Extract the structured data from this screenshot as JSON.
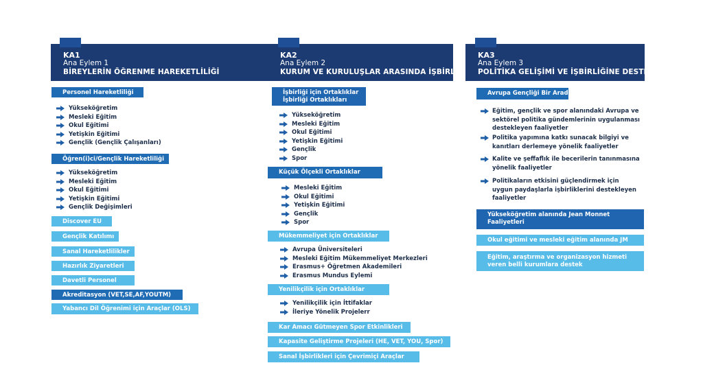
{
  "ka1": {
    "code": "KA1",
    "sub": "Ana Eylem 1",
    "title": "BİREYLERİN ÖĞRENME HAREKETLİLİĞİ",
    "box1": "Personel Hareketliliği",
    "list1": [
      "Yükseköğretim",
      "Mesleki Eğitim",
      "Okul Eğitimi",
      "Yetişkin Eğitimi",
      "Gençlik (Gençlik Çalışanları)"
    ],
    "box2": "Öğren(i)ci/Gençlik Hareketliliği",
    "list2": [
      "Yükseköğretim",
      "Mesleki Eğitim",
      "Okul Eğitimi",
      "Yetişkin Eğitimi",
      "Gençlik Değişimleri"
    ],
    "boxes": [
      "Discover EU",
      "Gençlik Katılımı",
      "Sanal Hareketlilikler",
      "Hazırlık Ziyaretleri",
      "Davetli Personel",
      "Akreditasyon (VET,SE,AF,YOUTM)",
      "Yabancı Dil Öğrenimi için Araçlar (OLS)"
    ]
  },
  "ka2": {
    "code": "KA2",
    "sub": "Ana Eylem 2",
    "title": "KURUM VE KURULUŞLAR ARASINDA İŞBİRLİĞİ",
    "box1_line1": "İşbirliği için Ortaklıklar",
    "box1_line2": "İşbirliği Ortaklıkları",
    "list1": [
      "Yükseköğretim",
      "Mesleki Eğitim",
      "Okul Eğitimi",
      "Yetişkin Eğitimi",
      "Gençlik",
      "Spor"
    ],
    "box2": "Küçük Ölçekli Ortaklıklar",
    "list2": [
      "Mesleki Eğitim",
      "Okul Eğitimi",
      "Yetişkin Eğitimi",
      "Gençlik",
      "Spor"
    ],
    "box3": "Mükemmeliyet için Ortaklıklar",
    "list3": [
      "Avrupa Üniversiteleri",
      "Mesleki Eğitim Mükemmeliyet Merkezleri",
      "Erasmus+ Öğretmen Akademileri",
      "Erasmus Mundus Eylemi"
    ],
    "box4": "Yenilikçilik için Ortaklıklar",
    "list4": [
      "Yenilikçilik için İttifaklar",
      "İleriye Yönelik Projelerr"
    ],
    "boxes": [
      "Kar Amacı Gütmeyen Spor Etkinlikleri",
      "Kapasite Geliştirme Projeleri  (HE, VET, YOU, Spor)",
      "Sanal İşbirlikleri için Çevrimiçi Araçlar"
    ]
  },
  "ka3": {
    "code": "KA3",
    "sub": "Ana Eylem 3",
    "title": "POLİTİKA GELİŞİMİ VE İŞBİRLİĞİNE DESTEK",
    "box1": "Avrupa Gençliği Bir Arada",
    "items": [
      [
        "Eğitim, gençlik ve spor alanındaki Avrupa ve",
        "sektörel politika gündemlerinin uygulanması",
        "destekleyen faaliyetler"
      ],
      [
        "Politika yapımına katkı sunacak bilgiyi ve",
        "kanıtları derlemeye yönelik faaliyetler"
      ],
      [
        "Kalite ve şeffaflık ile becerilerin tanınmasına",
        "yönelik faaliyetler"
      ],
      [
        "Politikaların etkisini güçlendirmek için",
        "uygun paydaşlarla işbirliklerini destekleyen",
        "faaliyetler"
      ]
    ],
    "box2_line1": "Yükseköğretim alanında Jean Monnet",
    "box2_line2": "Faaliyetleri",
    "box3": "Okul eğitimi ve mesleki eğitim alanında JM",
    "box4_line1": "Eğitim, araştırma ve organizasyon hizmeti",
    "box4_line2": "veren belli kurumlara destek"
  },
  "colors": {
    "header": "#1c3b72",
    "dark_box": "#1f6cb5",
    "light_box": "#58bce8",
    "arrow": "#1f5fa8"
  }
}
